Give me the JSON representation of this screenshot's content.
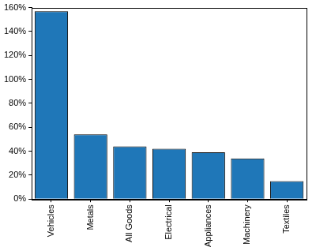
{
  "chart_data": {
    "type": "bar",
    "categories": [
      "Vehicles",
      "Metals",
      "All Goods",
      "Electrical",
      "Appliances",
      "Machinery",
      "Textiles"
    ],
    "values": [
      157,
      54,
      44,
      42,
      39,
      34,
      15
    ],
    "color": "#1f77b8",
    "ylim": [
      0,
      160
    ],
    "yticks": [
      {
        "value": 0,
        "label": "0%"
      },
      {
        "value": 20,
        "label": "20%"
      },
      {
        "value": 40,
        "label": "40%"
      },
      {
        "value": 60,
        "label": "60%"
      },
      {
        "value": 80,
        "label": "80%"
      },
      {
        "value": 100,
        "label": "100%"
      },
      {
        "value": 120,
        "label": "120%"
      },
      {
        "value": 140,
        "label": "140%"
      },
      {
        "value": 160,
        "label": "160%"
      }
    ],
    "grid": false
  }
}
